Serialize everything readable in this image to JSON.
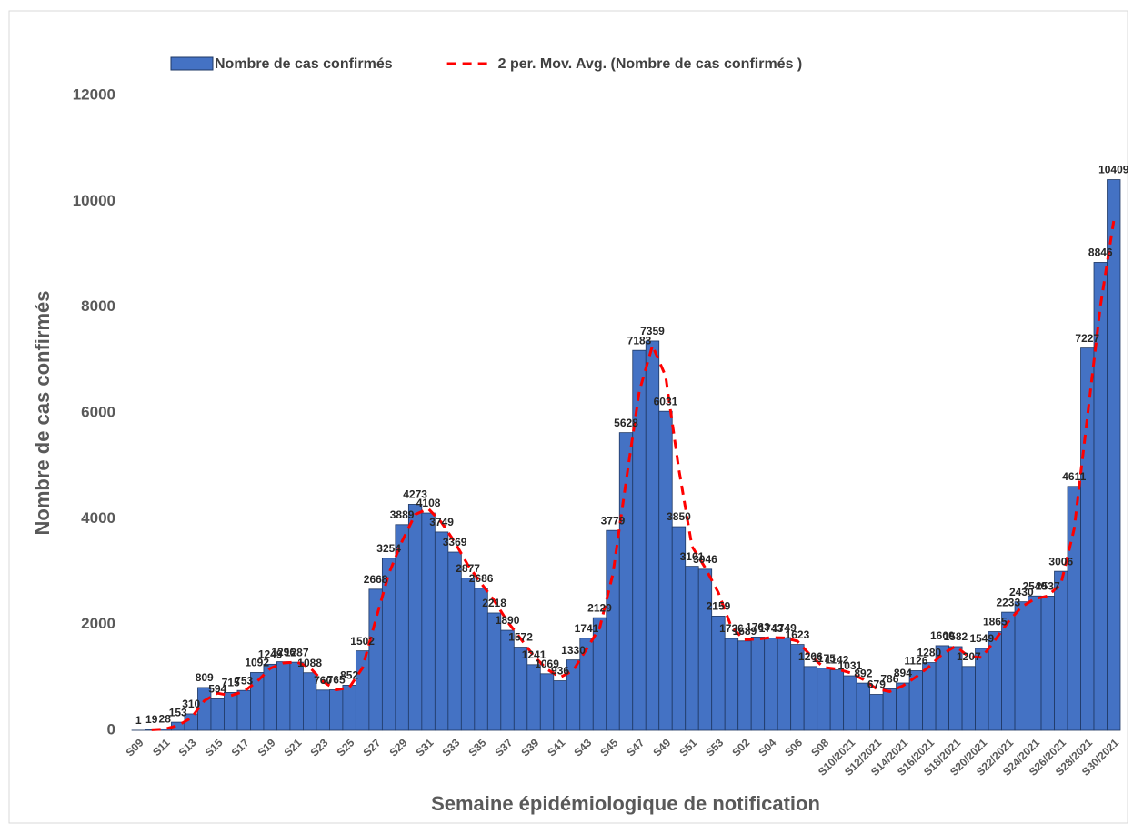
{
  "chart_data": {
    "type": "bar",
    "xlabel": "Semaine épidémiologique de notification",
    "ylabel": "Nombre de cas confirmés",
    "categories": [
      "S09",
      null,
      "S11",
      null,
      "S13",
      null,
      "S15",
      null,
      "S17",
      null,
      "S19",
      null,
      "S21",
      null,
      "S23",
      null,
      "S25",
      null,
      "S27",
      null,
      "S29",
      null,
      "S31",
      null,
      "S33",
      null,
      "S35",
      null,
      "S37",
      null,
      "S39",
      null,
      "S41",
      null,
      "S43",
      null,
      "S45",
      null,
      "S47",
      null,
      "S49",
      null,
      "S51",
      null,
      "S53",
      null,
      "S02",
      null,
      "S04",
      null,
      "S06",
      null,
      "S08",
      null,
      "S10/2021",
      null,
      "S12/2021",
      null,
      "S14/2021",
      null,
      "S16/2021",
      null,
      "S18/2021",
      null,
      "S20/2021",
      null,
      "S22/2021",
      null,
      "S24/2021",
      null,
      "S26/2021",
      null,
      "S28/2021",
      null,
      "S30/2021"
    ],
    "series": [
      {
        "name": "Nombre de cas confirmés",
        "type": "bar",
        "color": "#4472c4",
        "values": [
          1,
          19,
          28,
          153,
          310,
          809,
          594,
          715,
          753,
          1092,
          1249,
          1296,
          1287,
          1088,
          760,
          765,
          852,
          1502,
          2668,
          3254,
          3889,
          4273,
          4108,
          3749,
          3369,
          2877,
          2686,
          2218,
          1890,
          1572,
          1241,
          1069,
          936,
          1330,
          1741,
          2129,
          3779,
          5628,
          7183,
          7359,
          6031,
          3850,
          3101,
          3046,
          2159,
          1736,
          1689,
          1763,
          1743,
          1749,
          1623,
          1206,
          1175,
          1142,
          1031,
          892,
          679,
          786,
          894,
          1126,
          1280,
          1600,
          1582,
          1207,
          1549,
          1865,
          2233,
          2430,
          2540,
          2537,
          3006,
          4611,
          7227,
          8846,
          10409
        ]
      },
      {
        "name": "2 per. Mov. Avg. (Nombre de cas confirmés )",
        "type": "line",
        "color": "#ff0000",
        "values": [
          null,
          10,
          23.5,
          90.5,
          231.5,
          559.5,
          701.5,
          654.5,
          734,
          922.5,
          1170.5,
          1272.5,
          1291.5,
          1187.5,
          924,
          762.5,
          808.5,
          1177,
          2085,
          2961,
          3571.5,
          4081,
          4190.5,
          3928.5,
          3559,
          3123,
          2781.5,
          2452,
          2054,
          1731,
          1406.5,
          1155,
          1002.5,
          1133,
          1535.5,
          1935,
          2954,
          4703.5,
          6405.5,
          7271,
          6695,
          4940.5,
          3475.5,
          3073.5,
          2602.5,
          1947.5,
          1712.5,
          1726,
          1753,
          1746,
          1686,
          1414.5,
          1190.5,
          1158.5,
          1086.5,
          961.5,
          785.5,
          732.5,
          840,
          1010,
          1203,
          1440,
          1591,
          1394.5,
          1378,
          1707,
          2049,
          2331.5,
          2485,
          2538.5,
          2771.5,
          3808.5,
          5919,
          8036.5,
          9627.5
        ]
      }
    ],
    "ylim": [
      0,
      12000
    ],
    "yticks": [
      0,
      2000,
      4000,
      6000,
      8000,
      10000,
      12000
    ],
    "grid": false,
    "legend": "top"
  }
}
